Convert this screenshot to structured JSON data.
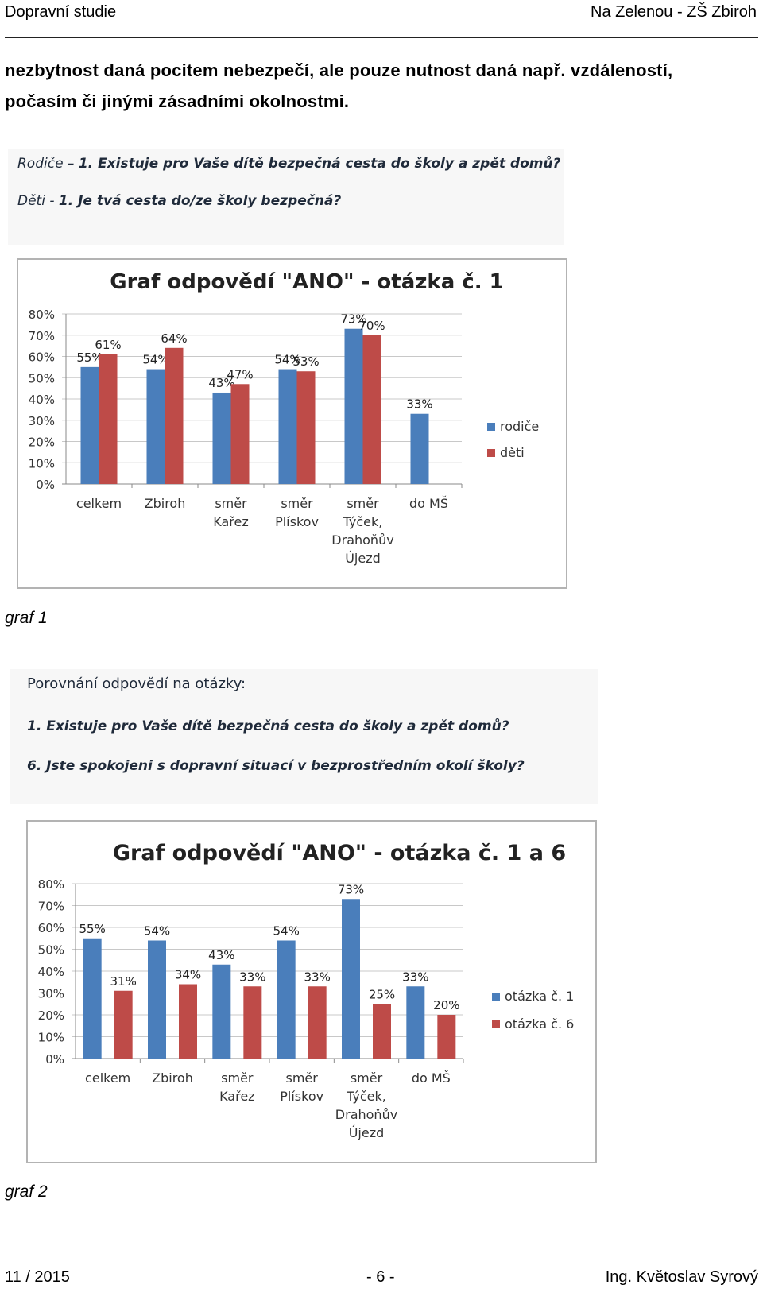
{
  "header": {
    "left": "Dopravní studie",
    "right": "Na Zelenou - ZŠ Zbiroh"
  },
  "body_text": {
    "line1": "nezbytnost daná pocitem nebezpečí, ale pouze nutnost daná např. vzdáleností,",
    "line2": "počasím či jinými zásadními okolnostmi."
  },
  "figure1": {
    "q1_prefix": "Rodiče – ",
    "q1_text": "1. Existuje pro Vaše dítě bezpečná cesta do školy a zpět domů?",
    "q2_prefix": "Děti - ",
    "q2_text": "1. Je tvá cesta do/ze školy bezpečná?",
    "caption": "graf 1"
  },
  "figure2": {
    "intro": "Porovnání odpovědí na otázky:",
    "q1": "1. Existuje pro Vaše dítě bezpečná cesta do školy a zpět domů?",
    "q6": "6. Jste spokojeni s dopravní situací v bezprostředním okolí školy?",
    "caption": "graf 2"
  },
  "footer": {
    "left": "11 / 2015",
    "center": "- 6 -",
    "right": "Ing. Květoslav Syrový"
  },
  "chart_data": [
    {
      "type": "bar",
      "title": "Graf odpovědí \"ANO\" - otázka č. 1",
      "categories": [
        [
          "celkem"
        ],
        [
          "Zbiroh"
        ],
        [
          "směr",
          "Kařez"
        ],
        [
          "směr",
          "Plískov"
        ],
        [
          "směr",
          "Týček,",
          "Drahoňův",
          "Újezd"
        ],
        [
          "do MŠ"
        ]
      ],
      "series": [
        {
          "name": "rodiče",
          "values": [
            55,
            54,
            43,
            54,
            73,
            33
          ],
          "color": "#4a7ebb"
        },
        {
          "name": "děti",
          "values": [
            61,
            64,
            47,
            53,
            70,
            null
          ],
          "color": "#be4b48"
        }
      ],
      "data_labels": [
        [
          "55%",
          "54%",
          "43%",
          "54%",
          "73%",
          "33%"
        ],
        [
          "61%",
          "64%",
          "47%",
          "53%",
          "70%",
          ""
        ]
      ],
      "y_ticks": [
        "0%",
        "10%",
        "20%",
        "30%",
        "40%",
        "50%",
        "60%",
        "70%",
        "80%"
      ],
      "ylim": [
        0,
        80
      ],
      "grid": true,
      "legend": "right"
    },
    {
      "type": "bar",
      "title": "Graf odpovědí \"ANO\" - otázka č. 1 a 6",
      "categories": [
        [
          "celkem"
        ],
        [
          "Zbiroh"
        ],
        [
          "směr",
          "Kařez"
        ],
        [
          "směr",
          "Plískov"
        ],
        [
          "směr",
          "Týček,",
          "Drahoňův",
          "Újezd"
        ],
        [
          "do MŠ"
        ]
      ],
      "series": [
        {
          "name": "otázka č. 1",
          "values": [
            55,
            54,
            43,
            54,
            73,
            33
          ],
          "color": "#4a7ebb"
        },
        {
          "name": "otázka č. 6",
          "values": [
            31,
            34,
            33,
            33,
            25,
            20
          ],
          "color": "#be4b48"
        }
      ],
      "data_labels": [
        [
          "55%",
          "54%",
          "43%",
          "54%",
          "73%",
          "33%"
        ],
        [
          "31%",
          "34%",
          "33%",
          "33%",
          "25%",
          "20%"
        ]
      ],
      "y_ticks": [
        "0%",
        "10%",
        "20%",
        "30%",
        "40%",
        "50%",
        "60%",
        "70%",
        "80%"
      ],
      "ylim": [
        0,
        80
      ],
      "grid": true,
      "legend": "right"
    }
  ]
}
